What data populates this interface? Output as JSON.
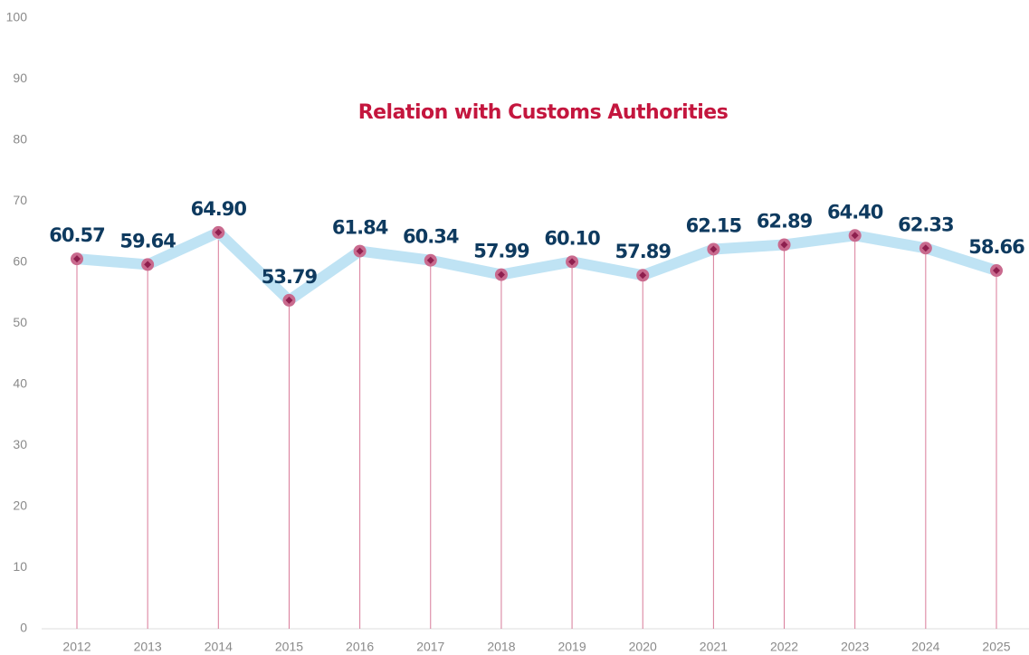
{
  "chart_data": {
    "type": "line",
    "title": "Relation with Customs Authorities",
    "categories": [
      "2012",
      "2013",
      "2014",
      "2015",
      "2016",
      "2017",
      "2018",
      "2019",
      "2020",
      "2021",
      "2022",
      "2023",
      "2024",
      "2025"
    ],
    "values": [
      60.57,
      59.64,
      64.9,
      53.79,
      61.84,
      60.34,
      57.99,
      60.1,
      57.89,
      62.15,
      62.89,
      64.4,
      62.33,
      58.66
    ],
    "value_labels": [
      "60.57",
      "59.64",
      "64.90",
      "53.79",
      "61.84",
      "60.34",
      "57.99",
      "60.10",
      "57.89",
      "62.15",
      "62.89",
      "64.40",
      "62.33",
      "58.66"
    ],
    "color": "#bfe3f4",
    "marker_color": "#c96a8e",
    "drop_line_color": "#d87a98",
    "ylim": [
      0,
      100
    ],
    "yticks": [
      0,
      10,
      20,
      30,
      40,
      50,
      60,
      70,
      80,
      90,
      100
    ],
    "grid": false
  }
}
